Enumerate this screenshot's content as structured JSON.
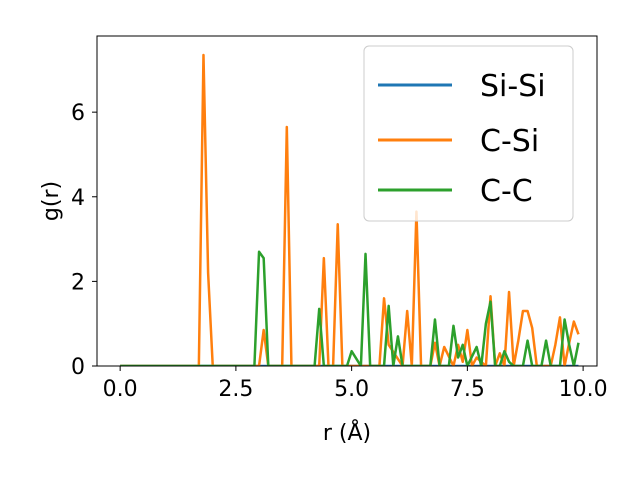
{
  "chart_data": {
    "type": "line",
    "xlabel": "r (Å)",
    "ylabel": "g(r)",
    "xlim": [
      -0.5,
      10.3
    ],
    "ylim": [
      0,
      7.8
    ],
    "xticks": [
      0.0,
      2.5,
      5.0,
      7.5,
      10.0
    ],
    "xtick_labels": [
      "0.0",
      "2.5",
      "5.0",
      "7.5",
      "10.0"
    ],
    "yticks": [
      0,
      2,
      4,
      6
    ],
    "ytick_labels": [
      "0",
      "2",
      "4",
      "6"
    ],
    "legend": {
      "position": "top-right"
    },
    "series": [
      {
        "name": "Si-Si",
        "color": "#1f77b4",
        "x": [
          0.0,
          9.9
        ],
        "y": [
          0.0,
          0.0
        ]
      },
      {
        "name": "C-Si",
        "color": "#ff7f0e",
        "x": [
          0.0,
          1.7,
          1.8,
          1.9,
          2.0,
          2.1,
          3.0,
          3.1,
          3.2,
          3.5,
          3.6,
          3.7,
          4.3,
          4.4,
          4.5,
          4.6,
          4.7,
          4.8,
          5.6,
          5.7,
          5.8,
          6.1,
          6.2,
          6.3,
          6.4,
          6.5,
          6.7,
          6.8,
          6.9,
          7.0,
          7.2,
          7.3,
          7.4,
          7.5,
          7.6,
          7.7,
          7.9,
          8.0,
          8.1,
          8.2,
          8.3,
          8.4,
          8.5,
          8.6,
          8.7,
          8.8,
          8.9,
          9.0,
          9.1,
          9.3,
          9.4,
          9.5,
          9.6,
          9.7,
          9.8,
          9.9
        ],
        "y": [
          0.0,
          0.0,
          7.35,
          2.2,
          0.0,
          0.0,
          0.0,
          0.85,
          0.0,
          0.0,
          5.65,
          0.0,
          0.0,
          2.55,
          0.0,
          0.0,
          3.35,
          0.0,
          0.0,
          1.6,
          0.5,
          0.0,
          1.3,
          0.0,
          3.65,
          0.0,
          0.0,
          0.55,
          0.0,
          0.45,
          0.0,
          0.5,
          0.1,
          0.85,
          0.0,
          0.2,
          0.0,
          1.65,
          0.0,
          0.3,
          0.0,
          1.75,
          0.0,
          0.6,
          1.3,
          1.3,
          0.9,
          0.0,
          0.0,
          0.0,
          0.5,
          1.15,
          0.0,
          0.55,
          1.05,
          0.75
        ]
      },
      {
        "name": "C-C",
        "color": "#2ca02c",
        "x": [
          0.0,
          2.9,
          3.0,
          3.1,
          3.2,
          4.2,
          4.3,
          4.4,
          4.8,
          4.9,
          5.0,
          5.2,
          5.3,
          5.4,
          5.7,
          5.8,
          5.9,
          6.0,
          6.1,
          6.2,
          6.7,
          6.8,
          6.9,
          7.1,
          7.2,
          7.3,
          7.4,
          7.5,
          7.7,
          7.8,
          7.9,
          8.0,
          8.1,
          8.2,
          8.3,
          8.4,
          8.5,
          8.7,
          8.8,
          8.9,
          9.1,
          9.2,
          9.3,
          9.5,
          9.6,
          9.7,
          9.8,
          9.9
        ],
        "y": [
          0.0,
          0.0,
          2.7,
          2.55,
          0.0,
          0.0,
          1.35,
          0.0,
          0.0,
          0.0,
          0.35,
          0.0,
          2.65,
          0.0,
          0.0,
          1.42,
          0.0,
          0.7,
          0.0,
          0.0,
          0.0,
          1.1,
          0.0,
          0.0,
          0.95,
          0.2,
          0.5,
          0.0,
          0.45,
          0.0,
          1.0,
          1.52,
          0.0,
          0.0,
          0.35,
          0.1,
          0.0,
          0.0,
          0.6,
          0.0,
          0.0,
          0.6,
          0.0,
          0.0,
          1.1,
          0.5,
          0.0,
          0.55
        ]
      }
    ]
  }
}
